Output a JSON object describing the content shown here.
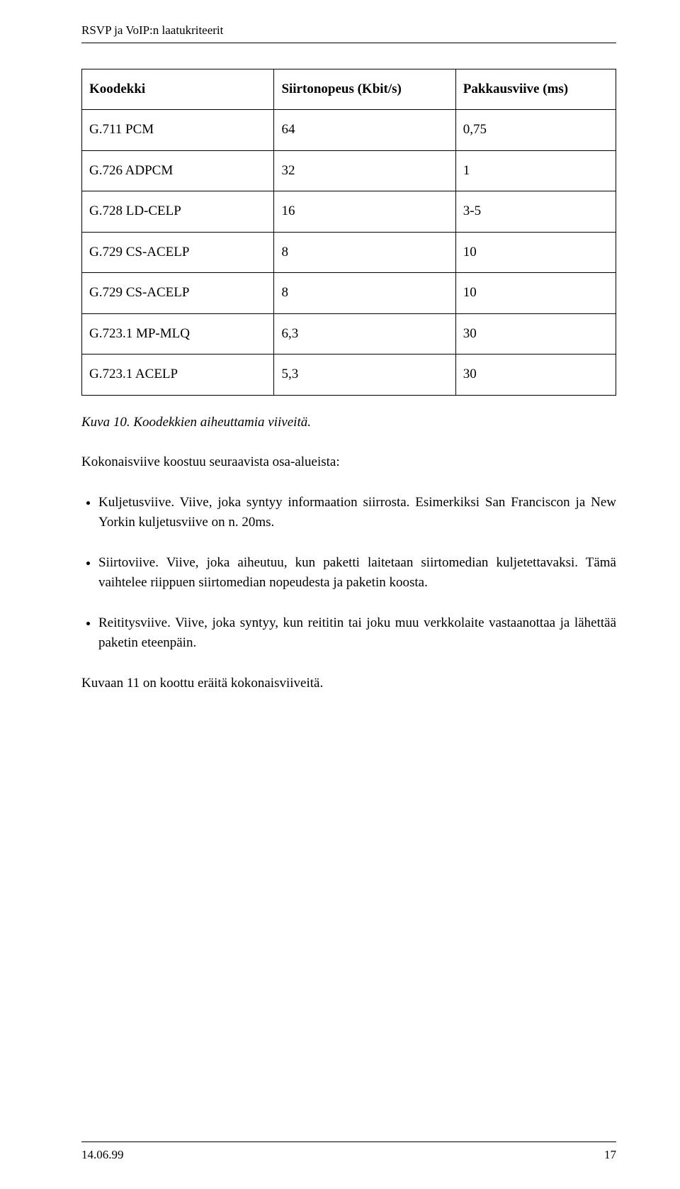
{
  "header": {
    "running_title": "RSVP ja VoIP:n laatukriteerit"
  },
  "table": {
    "columns": [
      "Koodekki",
      "Siirtonopeus (Kbit/s)",
      "Pakkausviive (ms)"
    ],
    "rows": [
      [
        "G.711 PCM",
        "64",
        "0,75"
      ],
      [
        "G.726 ADPCM",
        "32",
        "1"
      ],
      [
        "G.728 LD-CELP",
        "16",
        "3-5"
      ],
      [
        "G.729 CS-ACELP",
        "8",
        "10"
      ],
      [
        "G.729 CS-ACELP",
        "8",
        "10"
      ],
      [
        "G.723.1 MP-MLQ",
        "6,3",
        "30"
      ],
      [
        "G.723.1 ACELP",
        "5,3",
        "30"
      ]
    ],
    "caption": "Kuva 10.  Koodekkien aiheuttamia viiveitä."
  },
  "intro": "Kokonaisviive koostuu seuraavista osa-alueista:",
  "bullets": [
    "Kuljetusviive. Viive, joka syntyy informaation siirrosta. Esimerkiksi San Franciscon ja New Yorkin kuljetusviive on n. 20ms.",
    "Siirtoviive. Viive, joka aiheutuu, kun paketti laitetaan siirtomedian kuljetettavaksi. Tämä vaihtelee riippuen siirtomedian nopeudesta ja paketin koosta.",
    "Reititysviive. Viive, joka syntyy, kun reititin tai joku muu verkkolaite vastaanottaa ja lähettää paketin eteenpäin."
  ],
  "after": "Kuvaan 11 on koottu eräitä kokonaisviiveitä.",
  "footer": {
    "date": "14.06.99",
    "page": "17"
  }
}
